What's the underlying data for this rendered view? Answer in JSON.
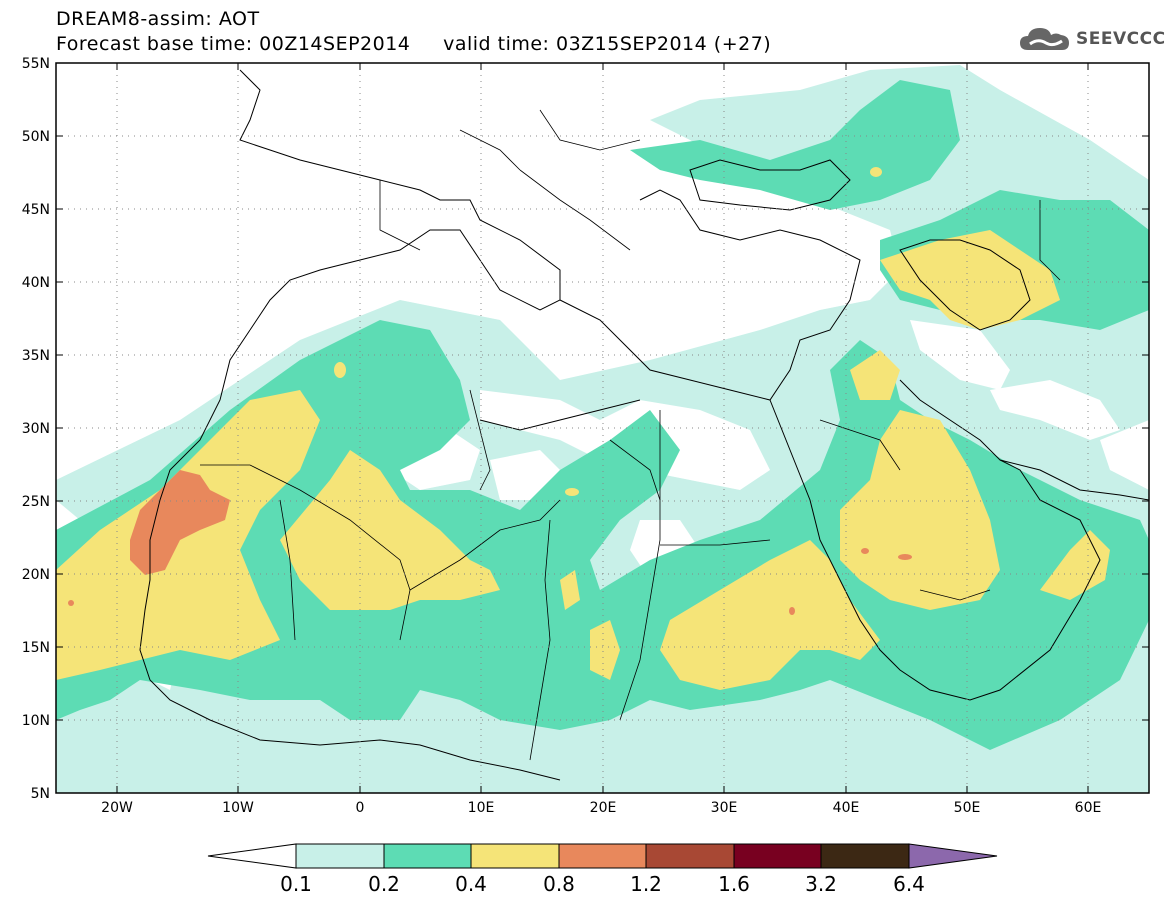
{
  "header": {
    "line1": "DREAM8-assim: AOT",
    "line2": "Forecast base time: 00Z14SEP2014     valid time: 03Z15SEP2014 (+27)"
  },
  "logo": {
    "text": "SEEVCCC",
    "icon": "cloud-icon"
  },
  "map": {
    "lon_range": [
      -25,
      65
    ],
    "lat_range": [
      5,
      55
    ],
    "grid": "dotted",
    "lat_ticks": [
      {
        "value": 55,
        "label": "55N"
      },
      {
        "value": 50,
        "label": "50N"
      },
      {
        "value": 45,
        "label": "45N"
      },
      {
        "value": 40,
        "label": "40N"
      },
      {
        "value": 35,
        "label": "35N"
      },
      {
        "value": 30,
        "label": "30N"
      },
      {
        "value": 25,
        "label": "25N"
      },
      {
        "value": 20,
        "label": "20N"
      },
      {
        "value": 15,
        "label": "15N"
      },
      {
        "value": 10,
        "label": "10N"
      },
      {
        "value": 5,
        "label": "5N"
      }
    ],
    "lon_ticks": [
      {
        "value": -20,
        "label": "20W"
      },
      {
        "value": -10,
        "label": "10W"
      },
      {
        "value": 0,
        "label": "0"
      },
      {
        "value": 10,
        "label": "10E"
      },
      {
        "value": 20,
        "label": "20E"
      },
      {
        "value": 30,
        "label": "30E"
      },
      {
        "value": 40,
        "label": "40E"
      },
      {
        "value": 50,
        "label": "50E"
      },
      {
        "value": 60,
        "label": "60E"
      }
    ]
  },
  "colorbar": {
    "labels": [
      "0.1",
      "0.2",
      "0.4",
      "0.8",
      "1.2",
      "1.6",
      "3.2",
      "6.4"
    ],
    "colors": [
      "#ffffff",
      "#c8f0e8",
      "#5ddcb4",
      "#f5e478",
      "#e8885c",
      "#a84834",
      "#780020",
      "#3c2814",
      "#8c68ac"
    ]
  },
  "colors": {
    "level_01_02": "#c8f0e8",
    "level_02_04": "#5ddcb4",
    "level_04_08": "#f5e478",
    "level_08_12": "#e8885c"
  }
}
